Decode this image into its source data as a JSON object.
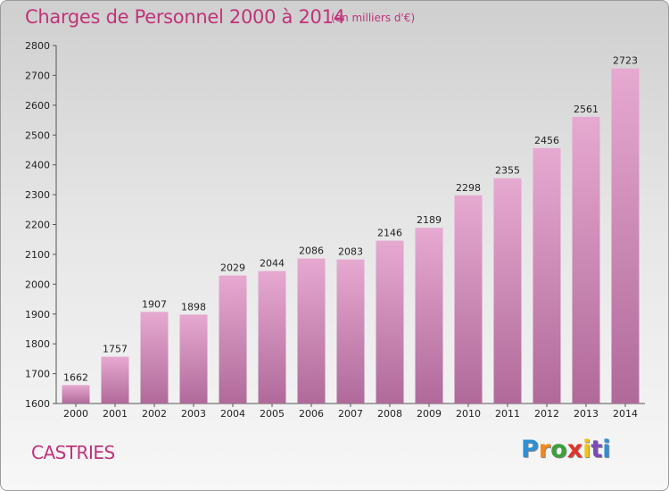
{
  "header": {
    "title": "Charges de Personnel 2000 à 2014",
    "subtitle": "(en milliers d'€)"
  },
  "footer": {
    "commune": "CASTRIES",
    "logo": "Proxiti"
  },
  "colors": {
    "title": "#c0337a",
    "bar_top": "#e6a9d0",
    "bar_bottom": "#b06a9a"
  },
  "chart_data": {
    "type": "bar",
    "categories": [
      "2000",
      "2001",
      "2002",
      "2003",
      "2004",
      "2005",
      "2006",
      "2007",
      "2008",
      "2009",
      "2010",
      "2011",
      "2012",
      "2013",
      "2014"
    ],
    "values": [
      1662,
      1757,
      1907,
      1898,
      2029,
      2044,
      2086,
      2083,
      2146,
      2189,
      2298,
      2355,
      2456,
      2561,
      2723
    ],
    "title": "Charges de Personnel 2000 à 2014",
    "subtitle": "(en milliers d'€)",
    "xlabel": "",
    "ylabel": "",
    "ylim": [
      1600,
      2800
    ],
    "yticks": [
      1600,
      1700,
      1800,
      1900,
      2000,
      2100,
      2200,
      2300,
      2400,
      2500,
      2600,
      2700,
      2800
    ],
    "grid": false,
    "data_labels": true
  }
}
